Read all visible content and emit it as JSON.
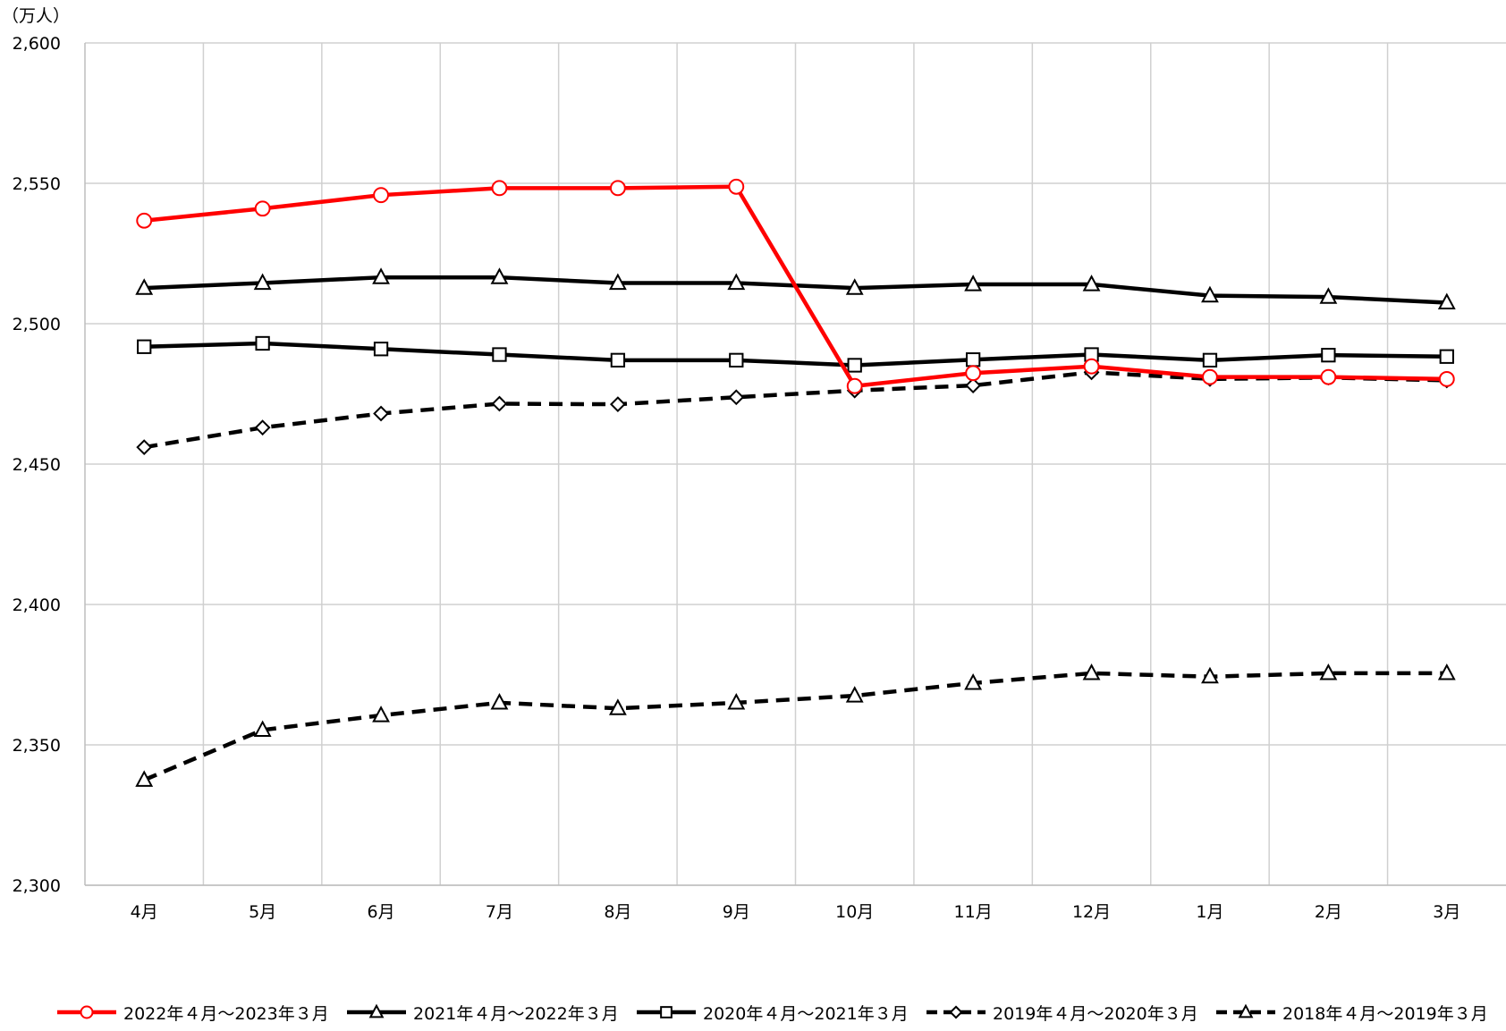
{
  "chart_data": {
    "type": "line",
    "unit_label": "（万人）",
    "categories": [
      "4月",
      "5月",
      "6月",
      "7月",
      "8月",
      "9月",
      "10月",
      "11月",
      "12月",
      "1月",
      "2月",
      "3月"
    ],
    "ylim": [
      2300,
      2600
    ],
    "yticks": [
      2300,
      2350,
      2400,
      2450,
      2500,
      2550,
      2600
    ],
    "ytick_labels": [
      "2,300",
      "2,350",
      "2,400",
      "2,450",
      "2,500",
      "2,550",
      "2,600"
    ],
    "grid": true,
    "legend_position": "bottom",
    "series": [
      {
        "name": "2022年４月～2023年３月",
        "color": "#ff0000",
        "dash": false,
        "marker": "circle",
        "values": [
          2536.7,
          2541.0,
          2545.8,
          2548.3,
          2548.3,
          2548.8,
          2477.8,
          2482.4,
          2484.8,
          2481.0,
          2481.0,
          2480.3
        ]
      },
      {
        "name": "2021年４月～2022年３月",
        "color": "#000000",
        "dash": false,
        "marker": "triangle",
        "values": [
          2512.7,
          2514.5,
          2516.5,
          2516.5,
          2514.5,
          2514.5,
          2512.7,
          2514.0,
          2514.0,
          2510.0,
          2509.5,
          2507.5
        ]
      },
      {
        "name": "2020年４月～2021年３月",
        "color": "#000000",
        "dash": false,
        "marker": "square",
        "values": [
          2491.8,
          2493.0,
          2491.0,
          2489.0,
          2487.0,
          2487.0,
          2485.2,
          2487.2,
          2489.0,
          2487.0,
          2488.8,
          2488.3
        ]
      },
      {
        "name": "2019年４月～2020年３月",
        "color": "#000000",
        "dash": true,
        "marker": "diamond",
        "values": [
          2456.0,
          2463.0,
          2468.0,
          2471.5,
          2471.3,
          2473.8,
          2476.2,
          2478.0,
          2482.7,
          2480.3,
          2480.8,
          2479.8
        ]
      },
      {
        "name": "2018年４月～2019年３月",
        "color": "#000000",
        "dash": true,
        "marker": "triangle",
        "values": [
          2337.5,
          2355.3,
          2360.5,
          2365.0,
          2363.0,
          2365.0,
          2367.5,
          2372.0,
          2375.5,
          2374.3,
          2375.5,
          2375.5
        ]
      }
    ]
  }
}
